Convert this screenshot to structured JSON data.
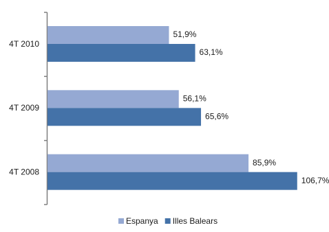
{
  "chart_data": {
    "type": "bar",
    "orientation": "horizontal",
    "categories": [
      "4T 2010",
      "4T 2009",
      "4T 2008"
    ],
    "series": [
      {
        "name": "Espanya",
        "values": [
          51.9,
          56.1,
          85.9
        ],
        "color": "#95a9d3"
      },
      {
        "name": "Illes Balears",
        "values": [
          63.1,
          65.6,
          106.7
        ],
        "color": "#4472a8"
      }
    ],
    "data_labels": [
      [
        "51,9%",
        "56,1%",
        "85,9%"
      ],
      [
        "63,1%",
        "65,6%",
        "106,7%"
      ]
    ],
    "title": "",
    "xlabel": "",
    "ylabel": "",
    "xlim": [
      0,
      120
    ],
    "value_axis_visible": false,
    "grid": false,
    "legend_position": "bottom"
  }
}
